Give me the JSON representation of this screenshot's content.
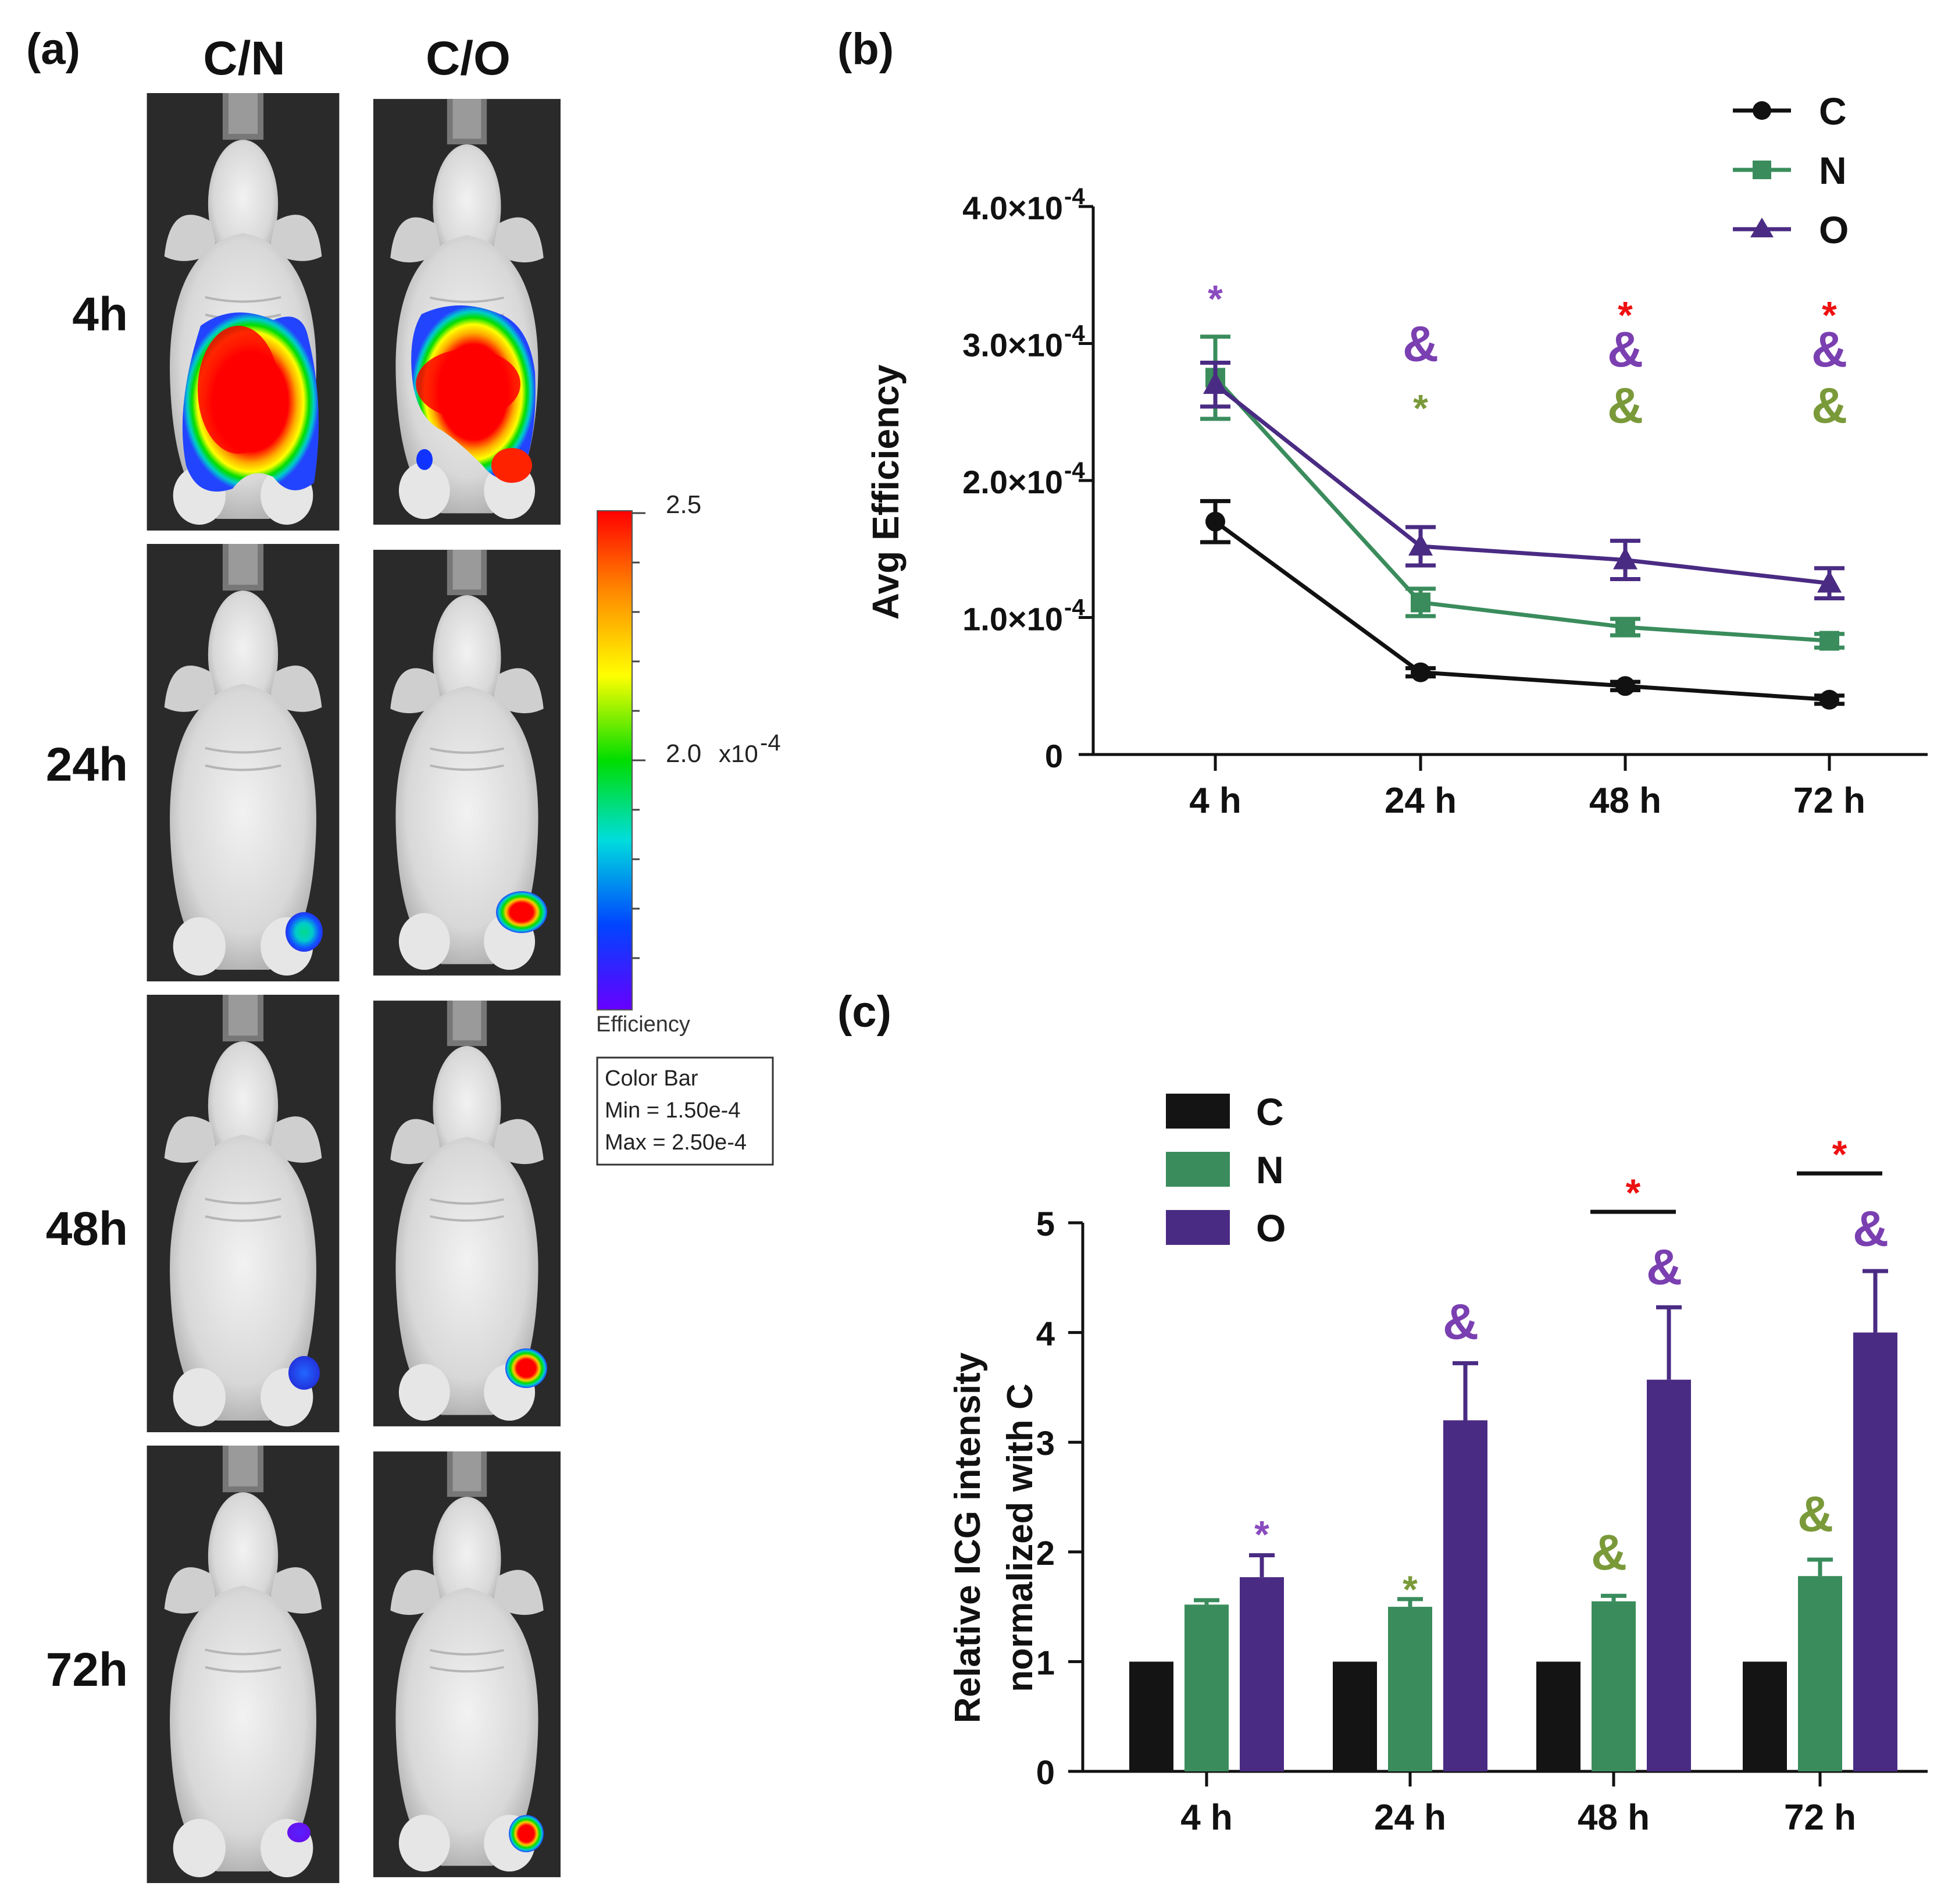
{
  "panel_a": {
    "label": "(a)",
    "columns": [
      "C/N",
      "C/O"
    ],
    "rows": [
      "4h",
      "24h",
      "48h",
      "72h"
    ],
    "colorbar": {
      "max_label": "2.5",
      "mid_label": "2.0",
      "exponent_label": "x10",
      "exponent_power": "-4",
      "bottom_label": "Efficiency",
      "box_title": "Color Bar",
      "box_min": "Min = 1.50e-4",
      "box_max": "Max = 2.50e-4",
      "colors": [
        "#ff0000",
        "#ff8800",
        "#ffff00",
        "#00dd00",
        "#00dddd",
        "#0044ff",
        "#6600ff"
      ]
    }
  },
  "chart_data": [
    {
      "panel": "(b)",
      "type": "line",
      "title": "",
      "xlabel": "",
      "ylabel": "Avg Efficiency",
      "categories": [
        "4 h",
        "24 h",
        "48 h",
        "72 h"
      ],
      "ylim": [
        0,
        0.0004
      ],
      "yticks": [
        {
          "value": 0,
          "label": "0",
          "exp": ""
        },
        {
          "value": 0.0001,
          "label": "1.0×10",
          "exp": "-4"
        },
        {
          "value": 0.0002,
          "label": "2.0×10",
          "exp": "-4"
        },
        {
          "value": 0.0003,
          "label": "3.0×10",
          "exp": "-4"
        },
        {
          "value": 0.0004,
          "label": "4.0×10",
          "exp": "-4"
        }
      ],
      "series": [
        {
          "name": "C",
          "legend": "C",
          "color": "#111111",
          "marker": "circle",
          "values": [
            0.00017,
            6e-05,
            5e-05,
            4e-05
          ],
          "errors": [
            1.5e-05,
            3e-06,
            3e-06,
            3e-06
          ]
        },
        {
          "name": "N",
          "legend": "N",
          "color": "#3a8c5c",
          "marker": "square",
          "values": [
            0.000275,
            0.000111,
            9.3e-05,
            8.3e-05
          ],
          "errors": [
            3e-05,
            1e-05,
            6e-06,
            5e-06
          ]
        },
        {
          "name": "O",
          "legend": "O",
          "color": "#4a2b83",
          "marker": "triangle",
          "values": [
            0.00027,
            0.000152,
            0.000142,
            0.000125
          ],
          "errors": [
            1.6e-05,
            1.4e-05,
            1.4e-05,
            1.1e-05
          ]
        }
      ],
      "annotations": [
        {
          "category": 0,
          "level": 0.00034,
          "text": "*",
          "color": "#8a4bbf",
          "kind": "star"
        },
        {
          "category": 1,
          "level": 0.00026,
          "text": "*",
          "color": "#7a9a3a",
          "kind": "star"
        },
        {
          "category": 1,
          "level": 0.0003,
          "text": "&",
          "color": "#7a3fb0",
          "kind": "amp"
        },
        {
          "category": 2,
          "level": 0.000255,
          "text": "&",
          "color": "#7a9a3a",
          "kind": "amp"
        },
        {
          "category": 2,
          "level": 0.000296,
          "text": "&",
          "color": "#7a3fb0",
          "kind": "amp"
        },
        {
          "category": 2,
          "level": 0.000328,
          "text": "*",
          "color": "#ee1111",
          "kind": "star"
        },
        {
          "category": 3,
          "level": 0.000255,
          "text": "&",
          "color": "#7a9a3a",
          "kind": "amp"
        },
        {
          "category": 3,
          "level": 0.000296,
          "text": "&",
          "color": "#7a3fb0",
          "kind": "amp"
        },
        {
          "category": 3,
          "level": 0.000328,
          "text": "*",
          "color": "#ee1111",
          "kind": "star"
        }
      ]
    },
    {
      "panel": "(c)",
      "type": "bar",
      "title": "",
      "xlabel": "",
      "ylabel_line1": "Relative ICG intensity",
      "ylabel_line2": "normalized with C",
      "categories": [
        "4 h",
        "24 h",
        "48 h",
        "72 h"
      ],
      "ylim": [
        0,
        5
      ],
      "yticks": [
        "0",
        "1",
        "2",
        "3",
        "4",
        "5"
      ],
      "series": [
        {
          "name": "C",
          "legend": "C",
          "color": "#141414",
          "values": [
            1.0,
            1.0,
            1.0,
            1.0
          ],
          "errors": [
            0,
            0,
            0,
            0
          ]
        },
        {
          "name": "N",
          "legend": "N",
          "color": "#3a8c5c",
          "values": [
            1.52,
            1.5,
            1.55,
            1.78
          ],
          "errors": [
            0.04,
            0.07,
            0.05,
            0.15
          ]
        },
        {
          "name": "O",
          "legend": "O",
          "color": "#4a2b83",
          "values": [
            1.77,
            3.2,
            3.57,
            4.0
          ],
          "errors": [
            0.2,
            0.52,
            0.66,
            0.56
          ]
        }
      ],
      "annotations": [
        {
          "category": 0,
          "series": 2,
          "level": 2.25,
          "text": "*",
          "color": "#8a4bbf",
          "kind": "star"
        },
        {
          "category": 1,
          "series": 1,
          "level": 1.75,
          "text": "*",
          "color": "#7a9a3a",
          "kind": "star"
        },
        {
          "category": 1,
          "series": 2,
          "level": 4.1,
          "text": "&",
          "color": "#7a3fb0",
          "kind": "amp"
        },
        {
          "category": 2,
          "series": 1,
          "level": 2.0,
          "text": "&",
          "color": "#7a9a3a",
          "kind": "amp"
        },
        {
          "category": 2,
          "series": 2,
          "level": 4.6,
          "text": "&",
          "color": "#7a3fb0",
          "kind": "amp"
        },
        {
          "category": 3,
          "series": 1,
          "level": 2.35,
          "text": "&",
          "color": "#7a9a3a",
          "kind": "amp"
        },
        {
          "category": 3,
          "series": 2,
          "level": 4.95,
          "text": "&",
          "color": "#7a3fb0",
          "kind": "amp"
        }
      ],
      "brackets": [
        {
          "category": 2,
          "level": 5.1,
          "text": "*",
          "color": "#ee1111"
        },
        {
          "category": 3,
          "level": 5.45,
          "text": "*",
          "color": "#ee1111"
        }
      ]
    }
  ]
}
